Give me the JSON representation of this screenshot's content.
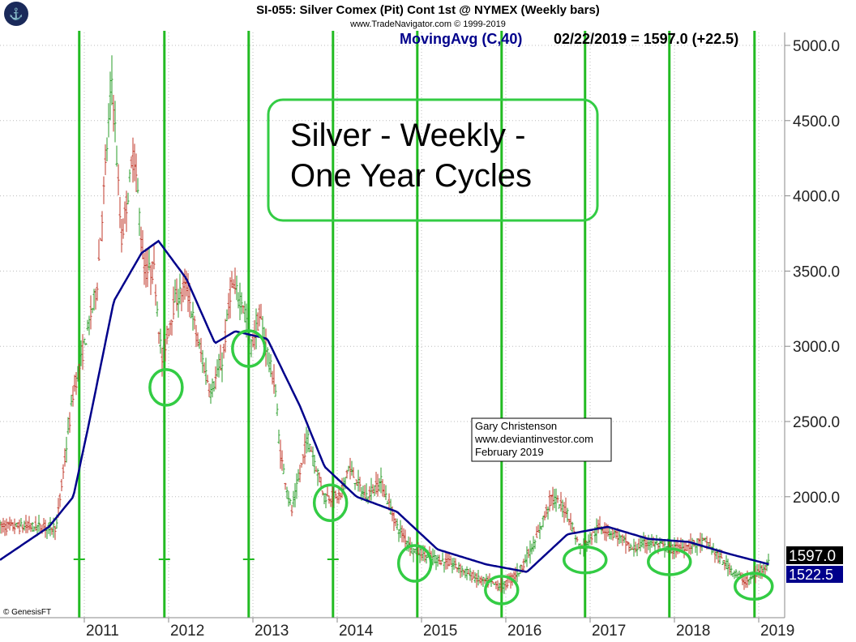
{
  "header": {
    "title": "SI-055:  Silver Comex (Pit) Cont 1st @ NYMEX  (Weekly bars)",
    "subtitle": "www.TradeNavigator.com © 1999-2019",
    "indicator": "MovingAvg (C,40)",
    "indicator_value": "02/22/2019 = 1597.0 (+22.5)"
  },
  "copyright": "© GenesisFT",
  "annotation_box": {
    "lines": [
      "Silver - Weekly -",
      "One Year Cycles"
    ]
  },
  "author_box": {
    "lines": [
      "Gary Christenson",
      "www.deviantinvestor.com",
      "February 2019"
    ]
  },
  "colors": {
    "up": "#2a9d2a",
    "down": "#c0392b",
    "ma": "#00008b",
    "cycle": "#22bb22",
    "circle": "#33cc44"
  },
  "chart_data": {
    "type": "line",
    "xlim": [
      2010.0,
      2019.3
    ],
    "ylim": [
      1200,
      5100
    ],
    "yticks": [
      2000,
      2500,
      3000,
      3500,
      4000,
      4500,
      5000
    ],
    "ytick_labels": [
      "2000.0",
      "2500.0",
      "3000.0",
      "3500.0",
      "4000.0",
      "4500.0",
      "5000.0"
    ],
    "xticks": [
      2011,
      2012,
      2013,
      2014,
      2015,
      2016,
      2017,
      2018,
      2019
    ],
    "xtick_labels": [
      "2011",
      "2012",
      "2013",
      "2014",
      "2015",
      "2016",
      "2017",
      "2018",
      "2019"
    ],
    "grid": true,
    "last_price_label": "1597.0",
    "last_ma_label": "1522.5",
    "price_path": [
      [
        2010.0,
        1800
      ],
      [
        2010.38,
        1800
      ],
      [
        2010.67,
        1800
      ],
      [
        2010.87,
        2700
      ],
      [
        2010.96,
        2900
      ],
      [
        2011.15,
        3400
      ],
      [
        2011.33,
        4800
      ],
      [
        2011.44,
        3700
      ],
      [
        2011.59,
        4300
      ],
      [
        2011.71,
        3500
      ],
      [
        2011.83,
        3500
      ],
      [
        2011.92,
        2900
      ],
      [
        2012.07,
        3300
      ],
      [
        2012.21,
        3400
      ],
      [
        2012.36,
        3000
      ],
      [
        2012.5,
        2700
      ],
      [
        2012.64,
        2900
      ],
      [
        2012.74,
        3400
      ],
      [
        2012.88,
        3300
      ],
      [
        2012.98,
        3000
      ],
      [
        2013.08,
        3200
      ],
      [
        2013.27,
        2700
      ],
      [
        2013.32,
        2300
      ],
      [
        2013.46,
        1900
      ],
      [
        2013.65,
        2400
      ],
      [
        2013.85,
        2000
      ],
      [
        2014.04,
        2000
      ],
      [
        2014.13,
        2200
      ],
      [
        2014.33,
        2000
      ],
      [
        2014.52,
        2100
      ],
      [
        2014.71,
        1800
      ],
      [
        2014.9,
        1650
      ],
      [
        2015.1,
        1600
      ],
      [
        2015.38,
        1550
      ],
      [
        2015.67,
        1450
      ],
      [
        2015.96,
        1400
      ],
      [
        2016.15,
        1500
      ],
      [
        2016.35,
        1700
      ],
      [
        2016.54,
        2000
      ],
      [
        2016.73,
        1900
      ],
      [
        2016.88,
        1650
      ],
      [
        2017.12,
        1800
      ],
      [
        2017.31,
        1750
      ],
      [
        2017.5,
        1650
      ],
      [
        2017.69,
        1700
      ],
      [
        2017.98,
        1650
      ],
      [
        2018.37,
        1700
      ],
      [
        2018.61,
        1550
      ],
      [
        2018.85,
        1430
      ],
      [
        2019.13,
        1570
      ]
    ],
    "moving_average": [
      [
        2010.0,
        1580
      ],
      [
        2010.58,
        1800
      ],
      [
        2010.87,
        2000
      ],
      [
        2011.06,
        2500
      ],
      [
        2011.35,
        3300
      ],
      [
        2011.68,
        3620
      ],
      [
        2011.88,
        3700
      ],
      [
        2012.21,
        3450
      ],
      [
        2012.55,
        3020
      ],
      [
        2012.79,
        3100
      ],
      [
        2013.17,
        3050
      ],
      [
        2013.56,
        2600
      ],
      [
        2013.85,
        2200
      ],
      [
        2014.23,
        2000
      ],
      [
        2014.71,
        1900
      ],
      [
        2015.19,
        1650
      ],
      [
        2015.77,
        1550
      ],
      [
        2016.25,
        1500
      ],
      [
        2016.73,
        1750
      ],
      [
        2017.21,
        1800
      ],
      [
        2017.69,
        1720
      ],
      [
        2018.17,
        1700
      ],
      [
        2018.65,
        1620
      ],
      [
        2019.13,
        1550
      ]
    ],
    "cycle_lines": [
      2010.94,
      2011.95,
      2012.95,
      2013.95,
      2014.95,
      2015.95,
      2016.94,
      2017.94,
      2018.95
    ],
    "cycle_lows": [
      [
        2011.97,
        2727
      ],
      [
        2012.95,
        2985
      ],
      [
        2013.92,
        1960
      ],
      [
        2014.92,
        1557
      ],
      [
        2015.95,
        1380
      ],
      [
        2016.94,
        1580
      ],
      [
        2017.94,
        1568
      ],
      [
        2018.94,
        1405
      ]
    ]
  }
}
